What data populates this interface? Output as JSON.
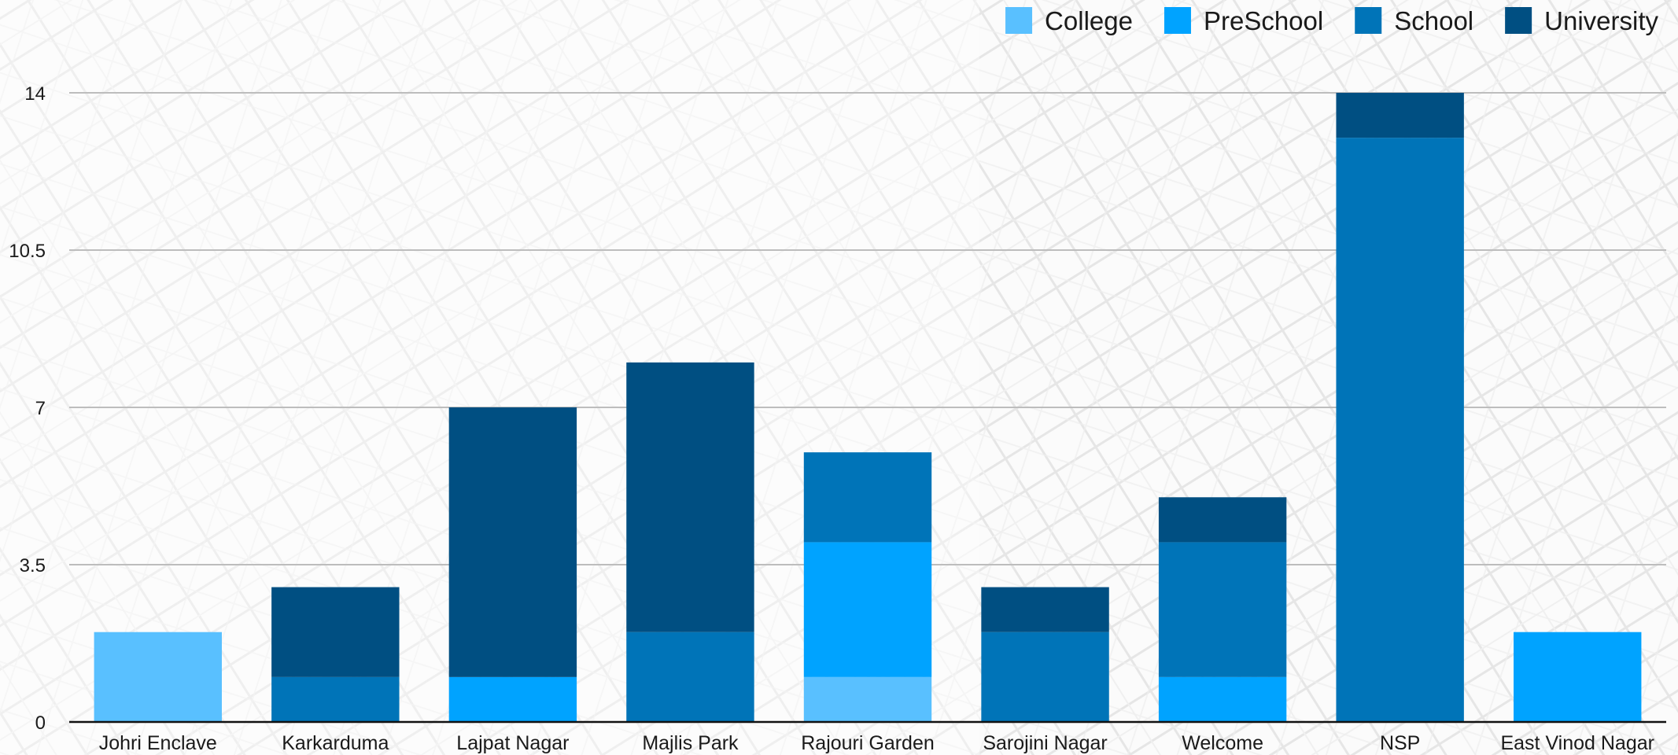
{
  "chart_data": {
    "type": "bar",
    "stacked": true,
    "title": "",
    "xlabel": "",
    "ylabel": "",
    "ylim": [
      0,
      14
    ],
    "yticks": [
      0,
      3.5,
      7,
      10.5,
      14
    ],
    "ytick_labels": [
      "0",
      "3.5",
      "7",
      "10.5",
      "14"
    ],
    "grid": true,
    "legend_position": "top-right",
    "categories": [
      "Johri Enclave",
      "Karkarduma",
      "Lajpat Nagar",
      "Majlis Park",
      "Rajouri Garden",
      "Sarojini Nagar",
      "Welcome",
      "NSP",
      "East Vinod Nagar"
    ],
    "series": [
      {
        "name": "College",
        "color": "#59c0ff",
        "values": [
          2,
          0,
          0,
          0,
          1,
          0,
          0,
          0,
          0
        ]
      },
      {
        "name": "PreSchool",
        "color": "#00a3ff",
        "values": [
          0,
          0,
          1,
          0,
          3,
          0,
          1,
          0,
          2
        ]
      },
      {
        "name": "School",
        "color": "#0074b8",
        "values": [
          0,
          1,
          0,
          2,
          2,
          2,
          3,
          13,
          0
        ]
      },
      {
        "name": "University",
        "color": "#004f82",
        "values": [
          0,
          2,
          6,
          6,
          0,
          1,
          1,
          1,
          0
        ]
      }
    ]
  }
}
